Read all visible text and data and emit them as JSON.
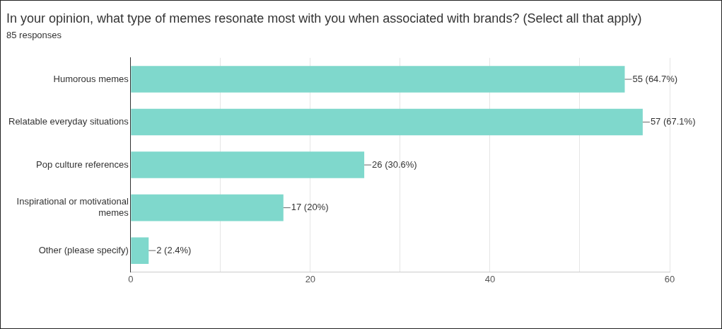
{
  "chart_data": {
    "type": "bar",
    "orientation": "horizontal",
    "title": "In your opinion, what type of memes resonate most with you when associated with brands? (Select all that apply)",
    "subtitle": "85 responses",
    "categories": [
      "Humorous memes",
      "Relatable everyday situations",
      "Pop culture references",
      "Inspirational or motivational memes",
      "Other (please specify)"
    ],
    "values": [
      55,
      57,
      26,
      17,
      2
    ],
    "value_labels": [
      "55 (64.7%)",
      "57 (67.1%)",
      "26 (30.6%)",
      "17 (20%)",
      "2 (2.4%)"
    ],
    "color": "#7fd8cc",
    "xlim": [
      0,
      60
    ],
    "xticks": [
      0,
      {
        "value": 10,
        "label": null
      },
      20,
      {
        "value": 30,
        "label": null
      },
      40,
      {
        "value": 50,
        "label": null
      },
      60
    ],
    "grid": "x",
    "legend": false
  }
}
